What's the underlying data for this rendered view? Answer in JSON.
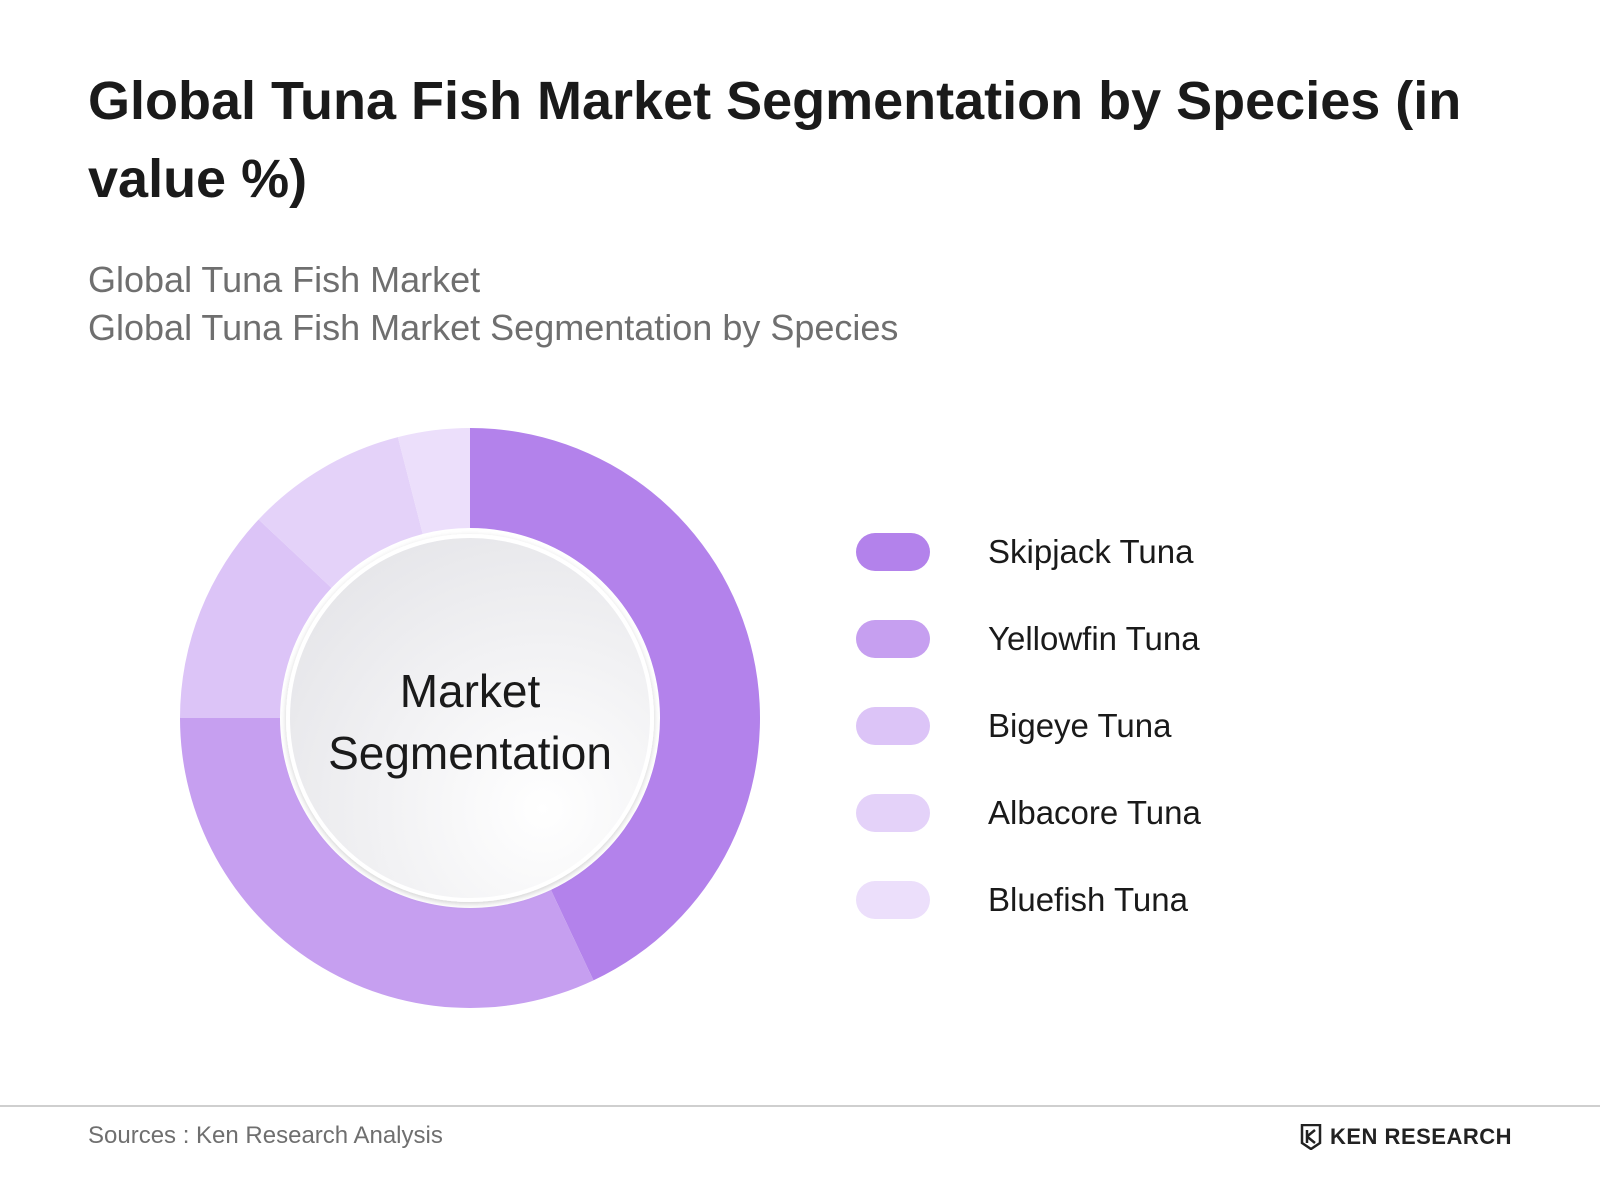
{
  "header": {
    "title": "Global Tuna Fish Market Segmentation by Species (in value %)",
    "subtitle_1": "Global Tuna Fish Market",
    "subtitle_2": "Global Tuna Fish Market Segmentation by Species"
  },
  "chart_data": {
    "type": "pie",
    "variant": "donut",
    "center_label_1": "Market",
    "center_label_2": "Segmentation",
    "categories": [
      "Skipjack Tuna",
      "Yellowfin Tuna",
      "Bigeye Tuna",
      "Albacore Tuna",
      "Bluefish Tuna"
    ],
    "values": [
      43,
      32,
      12,
      9,
      4
    ],
    "colors": [
      "#b382eb",
      "#c69ff0",
      "#dcc4f7",
      "#e4d2f9",
      "#ecdffb"
    ],
    "legend_position": "right"
  },
  "footer": {
    "source": "Sources : Ken Research Analysis",
    "logo_text": "KEN RESEARCH",
    "logo_icon": "ken-research-logo-icon"
  }
}
